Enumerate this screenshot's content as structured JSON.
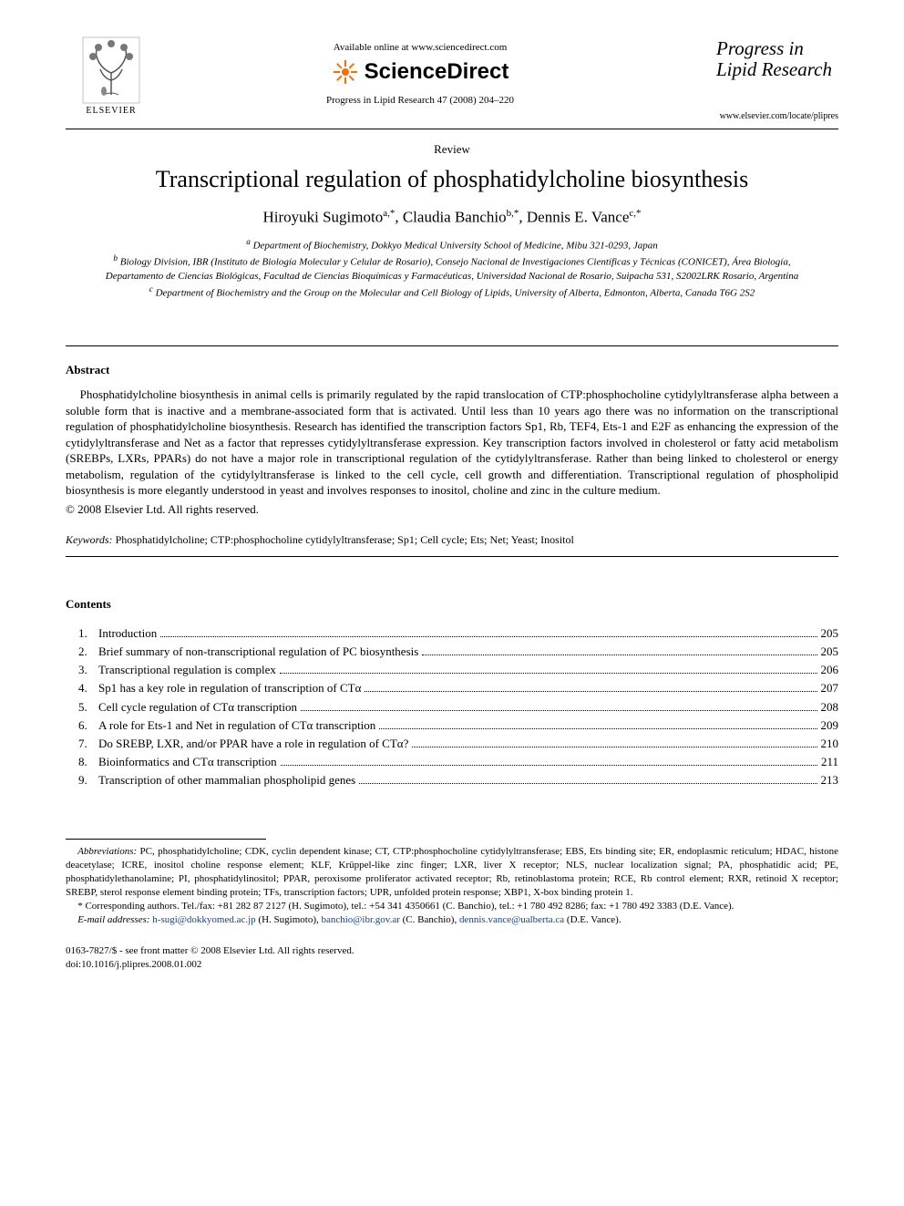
{
  "header": {
    "publisher": "ELSEVIER",
    "available": "Available online at www.sciencedirect.com",
    "sd_brand": "ScienceDirect",
    "citation": "Progress in Lipid Research 47 (2008) 204–220",
    "journal_title_line1": "Progress in",
    "journal_title_line2": "Lipid Research",
    "journal_url": "www.elsevier.com/locate/plipres"
  },
  "article": {
    "type": "Review",
    "title": "Transcriptional regulation of phosphatidylcholine biosynthesis",
    "authors_html": "Hiroyuki Sugimoto ",
    "authors": [
      {
        "name": "Hiroyuki Sugimoto",
        "sup": "a,*"
      },
      {
        "name": "Claudia Banchio",
        "sup": "b,*"
      },
      {
        "name": "Dennis E. Vance",
        "sup": "c,*"
      }
    ],
    "affiliations": [
      "a Department of Biochemistry, Dokkyo Medical University School of Medicine, Mibu 321-0293, Japan",
      "b Biology Division, IBR (Instituto de Biología Molecular y Celular de Rosario), Consejo Nacional de Investigaciones Científicas y Técnicas (CONICET), Área Biología, Departamento de Ciencias Biológicas, Facultad de Ciencias Bioquímicas y Farmacéuticas, Universidad Nacional de Rosario, Suipacha 531, S2002LRK Rosario, Argentina",
      "c Department of Biochemistry and the Group on the Molecular and Cell Biology of Lipids, University of Alberta, Edmonton, Alberta, Canada T6G 2S2"
    ]
  },
  "abstract": {
    "heading": "Abstract",
    "body": "Phosphatidylcholine biosynthesis in animal cells is primarily regulated by the rapid translocation of CTP:phosphocholine cytidylyltransferase alpha between a soluble form that is inactive and a membrane-associated form that is activated. Until less than 10 years ago there was no information on the transcriptional regulation of phosphatidylcholine biosynthesis. Research has identified the transcription factors Sp1, Rb, TEF4, Ets-1 and E2F as enhancing the expression of the cytidylyltransferase and Net as a factor that represses cytidylyltransferase expression. Key transcription factors involved in cholesterol or fatty acid metabolism (SREBPs, LXRs, PPARs) do not have a major role in transcriptional regulation of the cytidylyltransferase. Rather than being linked to cholesterol or energy metabolism, regulation of the cytidylyltransferase is linked to the cell cycle, cell growth and differentiation. Transcriptional regulation of phospholipid biosynthesis is more elegantly understood in yeast and involves responses to inositol, choline and zinc in the culture medium.",
    "copyright": "© 2008 Elsevier Ltd. All rights reserved."
  },
  "keywords": {
    "label": "Keywords:",
    "text": " Phosphatidylcholine; CTP:phosphocholine cytidylyltransferase; Sp1; Cell cycle; Ets; Net; Yeast; Inositol"
  },
  "contents": {
    "heading": "Contents",
    "items": [
      {
        "n": "1.",
        "t": "Introduction",
        "p": "205"
      },
      {
        "n": "2.",
        "t": "Brief summary of non-transcriptional regulation of PC biosynthesis",
        "p": "205"
      },
      {
        "n": "3.",
        "t": "Transcriptional regulation is complex",
        "p": "206"
      },
      {
        "n": "4.",
        "t": "Sp1 has a key role in regulation of transcription of CTα",
        "p": "207"
      },
      {
        "n": "5.",
        "t": "Cell cycle regulation of CTα transcription",
        "p": "208"
      },
      {
        "n": "6.",
        "t": "A role for Ets-1 and Net in regulation of CTα transcription",
        "p": "209"
      },
      {
        "n": "7.",
        "t": "Do SREBP, LXR, and/or PPAR have a role in regulation of CTα?",
        "p": "210"
      },
      {
        "n": "8.",
        "t": "Bioinformatics and CTα transcription",
        "p": "211"
      },
      {
        "n": "9.",
        "t": "Transcription of other mammalian phospholipid genes",
        "p": "213"
      }
    ]
  },
  "footnotes": {
    "abbrev_label": "Abbreviations:",
    "abbrev": " PC, phosphatidylcholine; CDK, cyclin dependent kinase; CT, CTP:phosphocholine cytidylyltransferase; EBS, Ets binding site; ER, endoplasmic reticulum; HDAC, histone deacetylase; ICRE, inositol choline response element; KLF, Krüppel-like zinc finger; LXR, liver X receptor; NLS, nuclear localization signal; PA, phosphatidic acid; PE, phosphatidylethanolamine; PI, phosphatidylinositol; PPAR, peroxisome proliferator activated receptor; Rb, retinoblastoma protein; RCE, Rb control element; RXR, retinoid X receptor; SREBP, sterol response element binding protein; TFs, transcription factors; UPR, unfolded protein response; XBP1, X-box binding protein 1.",
    "corr": "* Corresponding authors. Tel./fax: +81 282 87 2127 (H. Sugimoto), tel.: +54 341 4350661 (C. Banchio), tel.: +1 780 492 8286; fax: +1 780 492 3383 (D.E. Vance).",
    "email_label": "E-mail addresses:",
    "emails": [
      {
        "addr": "h-sugi@dokkyomed.ac.jp",
        "who": "(H. Sugimoto)"
      },
      {
        "addr": "banchio@ibr.gov.ar",
        "who": "(C. Banchio)"
      },
      {
        "addr": "dennis.vance@ualberta.ca",
        "who": "(D.E. Vance)"
      }
    ]
  },
  "footer": {
    "line1": "0163-7827/$ - see front matter © 2008 Elsevier Ltd. All rights reserved.",
    "line2": "doi:10.1016/j.plipres.2008.01.002"
  },
  "colors": {
    "text": "#000000",
    "bg": "#ffffff",
    "link": "#0645ad",
    "elsevier_orange": "#ff6a00"
  }
}
